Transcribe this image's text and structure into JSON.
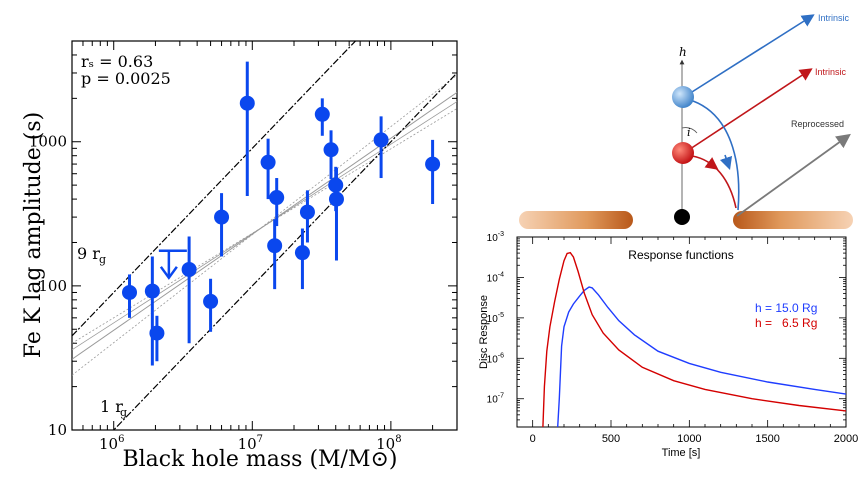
{
  "chart_data": [
    {
      "type": "scatter",
      "xlabel": "Black hole mass (M/M⊙)",
      "ylabel": "Fe K lag amplitude (s)",
      "xscale": "log",
      "yscale": "log",
      "xlim": [
        500000,
        300000000
      ],
      "ylim": [
        10,
        5000
      ],
      "x_ticks": [
        {
          "value": 1000000,
          "base": "10",
          "exp": "6"
        },
        {
          "value": 10000000,
          "base": "10",
          "exp": "7"
        },
        {
          "value": 100000000,
          "base": "10",
          "exp": "8"
        }
      ],
      "y_ticks": [
        {
          "value": 10,
          "label": "10"
        },
        {
          "value": 100,
          "label": "100"
        },
        {
          "value": 1000,
          "label": "1000"
        }
      ],
      "annotations": {
        "rs": "rₛ = 0.63",
        "p": "p = 0.0025"
      },
      "reference_lines": [
        {
          "label": "9 r",
          "sub": "g",
          "slope": 1
        },
        {
          "label": "1 r",
          "sub": "g",
          "slope": 1
        }
      ],
      "points": [
        {
          "x": 1300000,
          "y": 90,
          "ylo": 60,
          "yhi": 120
        },
        {
          "x": 1900000,
          "y": 92,
          "ylo": 28,
          "yhi": 160
        },
        {
          "x": 2050000,
          "y": 47,
          "ylo": 30,
          "yhi": 62
        },
        {
          "x": 3500000,
          "y": 130,
          "ylo": 40,
          "yhi": 220
        },
        {
          "x": 5000000,
          "y": 78,
          "ylo": 48,
          "yhi": 112
        },
        {
          "x": 6000000,
          "y": 300,
          "ylo": 160,
          "yhi": 440
        },
        {
          "x": 9200000,
          "y": 1850,
          "ylo": 420,
          "yhi": 3600
        },
        {
          "x": 13000000,
          "y": 720,
          "ylo": 400,
          "yhi": 1050
        },
        {
          "x": 14500000,
          "y": 190,
          "ylo": 95,
          "yhi": 290
        },
        {
          "x": 15000000,
          "y": 410,
          "ylo": 260,
          "yhi": 560
        },
        {
          "x": 23000000,
          "y": 170,
          "ylo": 95,
          "yhi": 250
        },
        {
          "x": 25000000,
          "y": 325,
          "ylo": 200,
          "yhi": 460
        },
        {
          "x": 32000000,
          "y": 1550,
          "ylo": 1100,
          "yhi": 2000
        },
        {
          "x": 37000000,
          "y": 880,
          "ylo": 550,
          "yhi": 1200
        },
        {
          "x": 40000000,
          "y": 500,
          "ylo": 330,
          "yhi": 670
        },
        {
          "x": 40500000,
          "y": 400,
          "ylo": 150,
          "yhi": 660
        },
        {
          "x": 85000000,
          "y": 1030,
          "ylo": 560,
          "yhi": 1500
        },
        {
          "x": 200000000,
          "y": 700,
          "ylo": 370,
          "yhi": 1030
        }
      ],
      "upper_limit": {
        "x": 2500000,
        "y": 140
      },
      "colors": {
        "points": "#0a47ee",
        "lines": "#000000",
        "fit": "#9a9a9a"
      }
    },
    {
      "type": "line",
      "title": "Response functions",
      "xlabel": "Time [s]",
      "ylabel": "Disc Response",
      "yscale": "log",
      "xlim": [
        -100,
        2000
      ],
      "ylim": [
        2e-08,
        0.001
      ],
      "x_ticks": [
        0,
        500,
        1000,
        1500,
        2000
      ],
      "y_ticks": [
        {
          "value": 0.001,
          "base": "10",
          "exp": "-3"
        },
        {
          "value": 0.0001,
          "base": "10",
          "exp": "-4"
        },
        {
          "value": 1e-05,
          "base": "10",
          "exp": "-5"
        },
        {
          "value": 1e-06,
          "base": "10",
          "exp": "-6"
        },
        {
          "value": 1e-07,
          "base": "10",
          "exp": "-7"
        }
      ],
      "series": [
        {
          "name": "h = 15.0 Rg",
          "color": "#1f3dff",
          "x": [
            160,
            170,
            185,
            200,
            230,
            260,
            300,
            330,
            360,
            380,
            420,
            480,
            550,
            650,
            800,
            1000,
            1200,
            1500,
            1800,
            2000
          ],
          "y": [
            2e-08,
            1e-07,
            2e-06,
            6e-06,
            1.4e-05,
            2.2e-05,
            3.5e-05,
            4.8e-05,
            5.8e-05,
            5.5e-05,
            3.7e-05,
            1.8e-05,
            8.5e-06,
            3.8e-06,
            1.5e-06,
            7.5e-07,
            4.5e-07,
            2.6e-07,
            1.7e-07,
            1.3e-07
          ]
        },
        {
          "name": "h =   6.5 Rg",
          "color": "#d40000",
          "x": [
            65,
            75,
            90,
            110,
            140,
            170,
            200,
            220,
            240,
            260,
            290,
            330,
            380,
            450,
            550,
            700,
            900,
            1100,
            1400,
            1700,
            2000
          ],
          "y": [
            2e-08,
            2e-07,
            1.5e-06,
            6e-06,
            2.5e-05,
            9e-05,
            0.00026,
            0.00039,
            0.00041,
            0.00032,
            0.00014,
            4e-05,
            1.2e-05,
            4.2e-06,
            1.6e-06,
            6e-07,
            2.8e-07,
            1.7e-07,
            1e-07,
            6.8e-08,
            5e-08
          ]
        }
      ]
    }
  ],
  "diagram": {
    "h_label": "h",
    "i_label": "i",
    "labels": [
      {
        "text": "Intrinsic",
        "color": "#2f6fc4"
      },
      {
        "text": "Intrinsic",
        "color": "#c0161a"
      },
      {
        "text": "Reprocessed",
        "color": "#333333"
      }
    ]
  }
}
